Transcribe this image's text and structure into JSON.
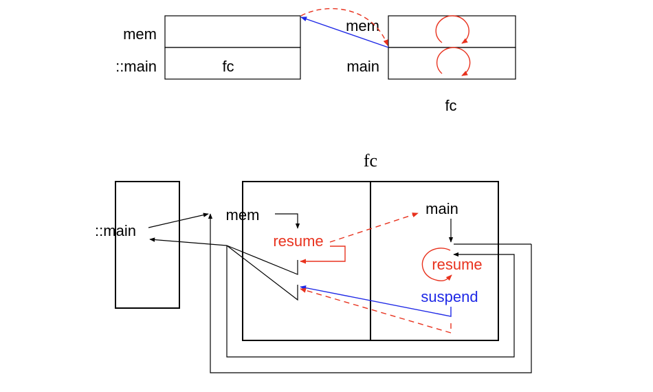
{
  "colors": {
    "black": "#000000",
    "red": "#e8321e",
    "blue": "#1e28e6"
  },
  "top": {
    "left_labels": {
      "row1": "mem",
      "row2": "::main"
    },
    "left_box_text": "fc",
    "right_labels": {
      "row1": "mem",
      "row2": "main"
    },
    "right_caption": "fc"
  },
  "bottom": {
    "title": "fc",
    "main_label": "::main",
    "mem_label": "mem",
    "main_right_label": "main",
    "resume_left": "resume",
    "resume_right": "resume",
    "suspend": "suspend"
  }
}
